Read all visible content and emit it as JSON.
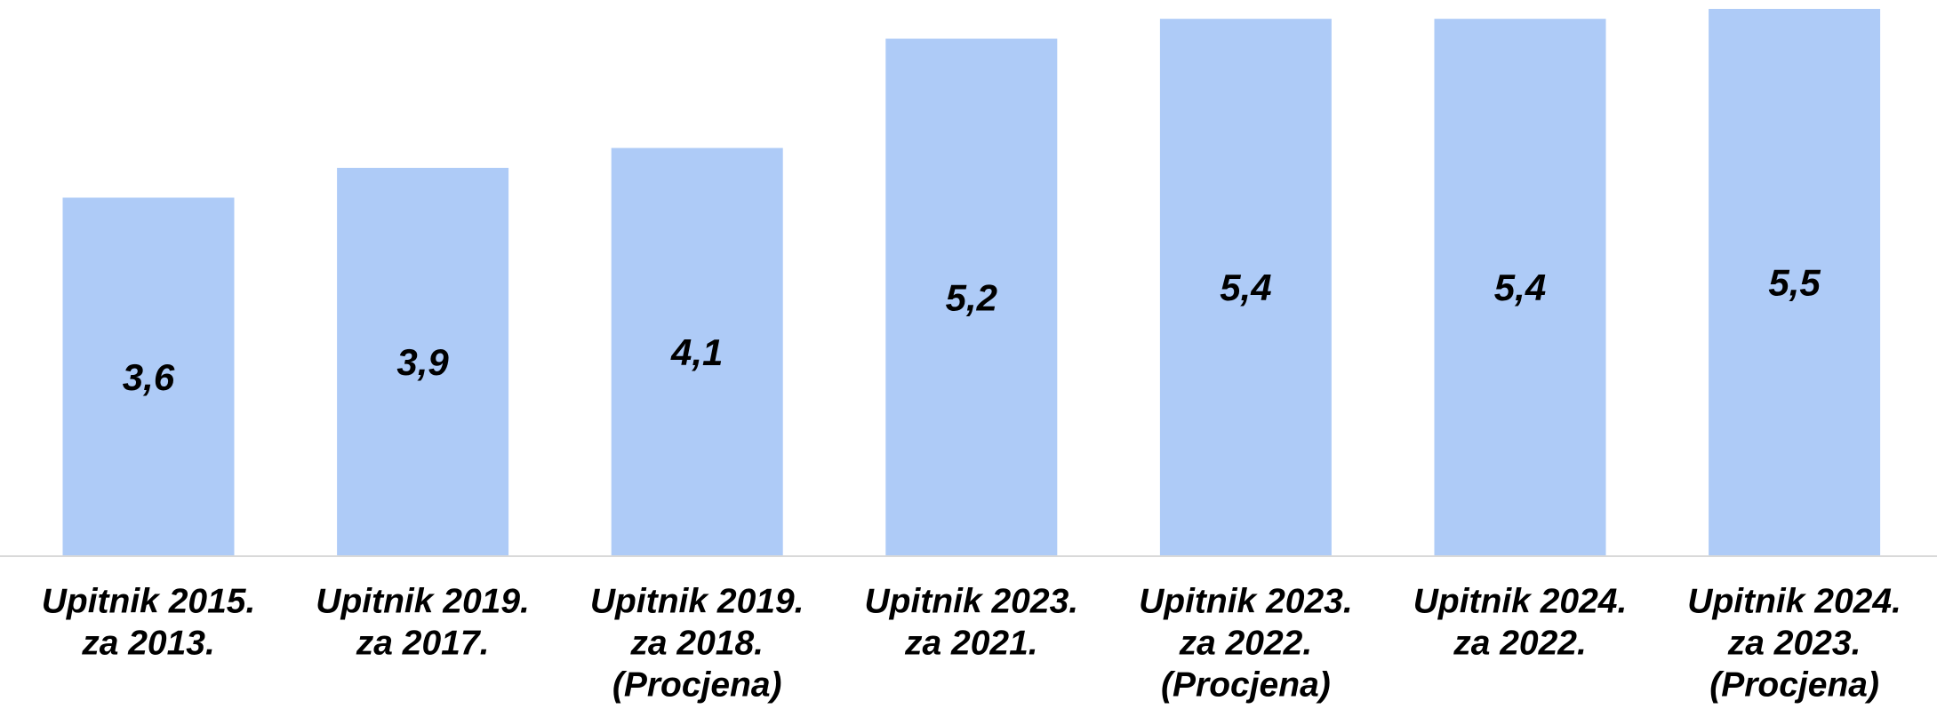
{
  "chart_data": {
    "type": "bar",
    "categories": [
      [
        "Upitnik 2015.",
        "za 2013."
      ],
      [
        "Upitnik 2019.",
        "za 2017."
      ],
      [
        "Upitnik 2019.",
        "za 2018.",
        "(Procjena)"
      ],
      [
        "Upitnik 2023.",
        "za 2021."
      ],
      [
        "Upitnik 2023.",
        "za 2022.",
        "(Procjena)"
      ],
      [
        "Upitnik 2024.",
        "za 2022."
      ],
      [
        "Upitnik 2024.",
        "za 2023.",
        "(Procjena)"
      ]
    ],
    "values": [
      3.6,
      3.9,
      4.1,
      5.2,
      5.4,
      5.4,
      5.5
    ],
    "value_labels": [
      "3,6",
      "3,9",
      "4,1",
      "5,2",
      "5,4",
      "5,4",
      "5,5"
    ],
    "color": "#aecbf7"
  }
}
